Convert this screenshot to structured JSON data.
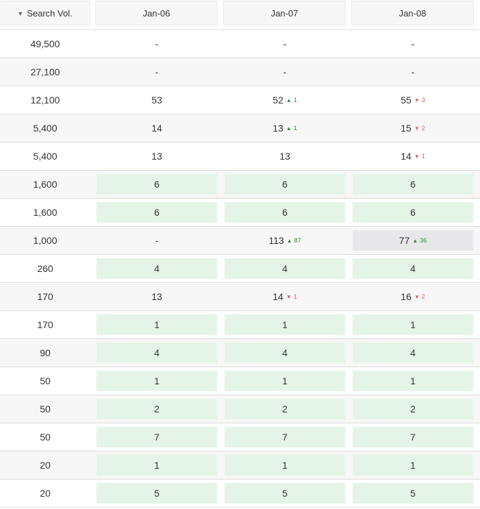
{
  "header": {
    "sort_icon": "sort-desc-icon",
    "search_vol_label": "Search Vol.",
    "columns": [
      "Jan-06",
      "Jan-07",
      "Jan-08"
    ]
  },
  "colors": {
    "up": "#2a8a3a",
    "down": "#e05a5a",
    "highlight_green": "#e4f4e7",
    "highlight_gray": "#e8e8ea"
  },
  "rows": [
    {
      "search_vol": "49,500",
      "cells": [
        {
          "value": "-"
        },
        {
          "value": "-"
        },
        {
          "value": "-"
        }
      ]
    },
    {
      "search_vol": "27,100",
      "cells": [
        {
          "value": "-"
        },
        {
          "value": "-"
        },
        {
          "value": "-"
        }
      ]
    },
    {
      "search_vol": "12,100",
      "cells": [
        {
          "value": "53"
        },
        {
          "value": "52",
          "change": "1",
          "dir": "up"
        },
        {
          "value": "55",
          "change": "3",
          "dir": "down"
        }
      ]
    },
    {
      "search_vol": "5,400",
      "cells": [
        {
          "value": "14"
        },
        {
          "value": "13",
          "change": "1",
          "dir": "up"
        },
        {
          "value": "15",
          "change": "2",
          "dir": "down"
        }
      ]
    },
    {
      "search_vol": "5,400",
      "cells": [
        {
          "value": "13"
        },
        {
          "value": "13"
        },
        {
          "value": "14",
          "change": "1",
          "dir": "down"
        }
      ]
    },
    {
      "search_vol": "1,600",
      "cells": [
        {
          "value": "6",
          "hl": "green"
        },
        {
          "value": "6",
          "hl": "green"
        },
        {
          "value": "6",
          "hl": "green"
        }
      ]
    },
    {
      "search_vol": "1,600",
      "cells": [
        {
          "value": "6",
          "hl": "green"
        },
        {
          "value": "6",
          "hl": "green"
        },
        {
          "value": "6",
          "hl": "green"
        }
      ]
    },
    {
      "search_vol": "1,000",
      "cells": [
        {
          "value": "-"
        },
        {
          "value": "113",
          "change": "87",
          "dir": "up"
        },
        {
          "value": "77",
          "change": "36",
          "dir": "up",
          "hl": "gray"
        }
      ]
    },
    {
      "search_vol": "260",
      "cells": [
        {
          "value": "4",
          "hl": "green"
        },
        {
          "value": "4",
          "hl": "green"
        },
        {
          "value": "4",
          "hl": "green"
        }
      ]
    },
    {
      "search_vol": "170",
      "cells": [
        {
          "value": "13"
        },
        {
          "value": "14",
          "change": "1",
          "dir": "down"
        },
        {
          "value": "16",
          "change": "2",
          "dir": "down"
        }
      ]
    },
    {
      "search_vol": "170",
      "cells": [
        {
          "value": "1",
          "hl": "green"
        },
        {
          "value": "1",
          "hl": "green"
        },
        {
          "value": "1",
          "hl": "green"
        }
      ]
    },
    {
      "search_vol": "90",
      "cells": [
        {
          "value": "4",
          "hl": "green"
        },
        {
          "value": "4",
          "hl": "green"
        },
        {
          "value": "4",
          "hl": "green"
        }
      ]
    },
    {
      "search_vol": "50",
      "cells": [
        {
          "value": "1",
          "hl": "green"
        },
        {
          "value": "1",
          "hl": "green"
        },
        {
          "value": "1",
          "hl": "green"
        }
      ]
    },
    {
      "search_vol": "50",
      "cells": [
        {
          "value": "2",
          "hl": "green"
        },
        {
          "value": "2",
          "hl": "green"
        },
        {
          "value": "2",
          "hl": "green"
        }
      ]
    },
    {
      "search_vol": "50",
      "cells": [
        {
          "value": "7",
          "hl": "green"
        },
        {
          "value": "7",
          "hl": "green"
        },
        {
          "value": "7",
          "hl": "green"
        }
      ]
    },
    {
      "search_vol": "20",
      "cells": [
        {
          "value": "1",
          "hl": "green"
        },
        {
          "value": "1",
          "hl": "green"
        },
        {
          "value": "1",
          "hl": "green"
        }
      ]
    },
    {
      "search_vol": "20",
      "cells": [
        {
          "value": "5",
          "hl": "green"
        },
        {
          "value": "5",
          "hl": "green"
        },
        {
          "value": "5",
          "hl": "green"
        }
      ]
    }
  ]
}
